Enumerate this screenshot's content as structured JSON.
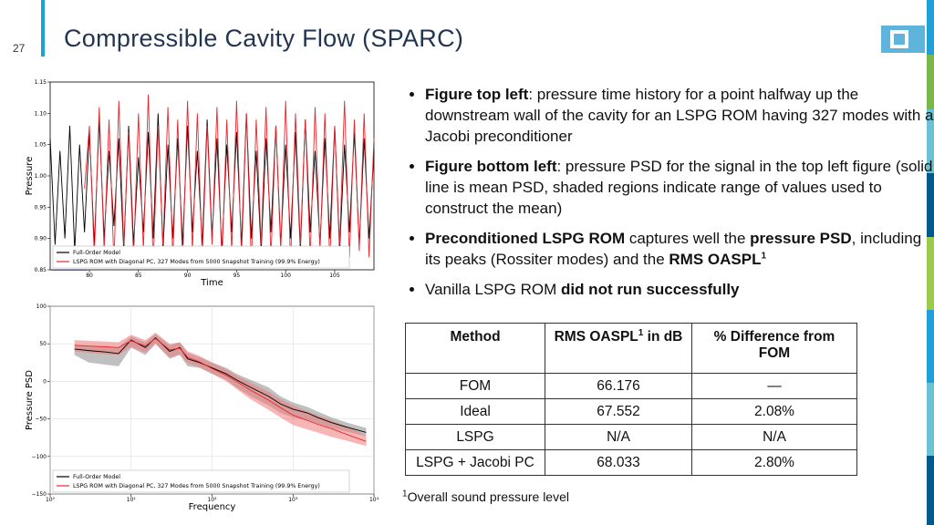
{
  "header": {
    "slide_number": "27",
    "title": "Compressible Cavity Flow (SPARC)"
  },
  "bullets": [
    [
      {
        "text": "Figure top left",
        "bold": true
      },
      {
        "text": ": pressure time history for a point halfway up the downstream wall of the cavity for an LSPG ROM having 327 modes with a Jacobi preconditioner"
      }
    ],
    [
      {
        "text": "Figure bottom left",
        "bold": true
      },
      {
        "text": ": pressure PSD for the signal in the top left figure (solid line is mean PSD, shaded regions indicate range of values used to construct the mean)"
      }
    ],
    [
      {
        "text": "Preconditioned LSPG ROM",
        "bold": true
      },
      {
        "text": " captures well the "
      },
      {
        "text": "pressure PSD",
        "bold": true
      },
      {
        "text": ", including its peaks (Rossiter modes) and the "
      },
      {
        "text": "RMS OASPL",
        "bold": true
      },
      {
        "text": "1",
        "bold": true,
        "sup": true
      }
    ],
    [
      {
        "text": "Vanilla LSPG ROM "
      },
      {
        "text": "did not run successfully",
        "bold": true
      }
    ]
  ],
  "table": {
    "header": [
      [
        {
          "text": "Method"
        }
      ],
      [
        {
          "text": "RMS OASPL"
        },
        {
          "text": "1",
          "sup": true
        },
        {
          "text": " in dB"
        }
      ],
      [
        {
          "text": "% Difference from FOM"
        }
      ]
    ],
    "rows": [
      [
        "FOM",
        "66.176",
        "—"
      ],
      [
        "Ideal",
        "67.552",
        "2.08%"
      ],
      [
        "LSPG",
        "N/A",
        "N/A"
      ],
      [
        "LSPG + Jacobi PC",
        "68.033",
        "2.80%"
      ]
    ]
  },
  "footnote": [
    {
      "text": "1",
      "sup": true
    },
    {
      "text": "Overall sound pressure level"
    }
  ],
  "chart_data": [
    {
      "type": "line",
      "xlabel": "Time",
      "ylabel": "Pressure",
      "xlim": [
        76,
        109
      ],
      "ylim": [
        0.85,
        1.15
      ],
      "xticks": [
        80,
        85,
        90,
        95,
        100,
        105
      ],
      "yticks": [
        0.85,
        {
          "value": 0.9,
          "label": "0.90"
        },
        0.95,
        {
          "value": 1,
          "label": "1.00"
        },
        1.05,
        {
          "value": 1.1,
          "label": "1.10"
        },
        1.15
      ],
      "grid": false,
      "legend": "lower left",
      "x": [
        76,
        76.5,
        77,
        77.5,
        78,
        78.5,
        79,
        79.5,
        80,
        80.5,
        81,
        81.5,
        82,
        82.5,
        83,
        83.5,
        84,
        84.5,
        85,
        85.5,
        86,
        86.5,
        87,
        87.5,
        88,
        88.5,
        89,
        89.5,
        90,
        90.5,
        91,
        91.5,
        92,
        92.5,
        93,
        93.5,
        94,
        94.5,
        95,
        95.5,
        96,
        96.5,
        97,
        97.5,
        98,
        98.5,
        99,
        99.5,
        100,
        100.5,
        101,
        101.5,
        102,
        102.5,
        103,
        103.5,
        104,
        104.5,
        105,
        105.5,
        106,
        106.5,
        107,
        107.5,
        108,
        108.5,
        109
      ],
      "series": [
        {
          "name": "Full-Order Model",
          "color": "#000000",
          "values": [
            1.06,
            0.89,
            1.04,
            0.9,
            1.08,
            0.88,
            1.05,
            0.91,
            1.07,
            0.89,
            1.09,
            0.9,
            1.04,
            0.92,
            1.06,
            0.88,
            1.08,
            0.89,
            1.03,
            0.91,
            1.07,
            0.9,
            1.1,
            0.88,
            1.05,
            0.9,
            1.06,
            0.89,
            1.08,
            0.91,
            1.04,
            0.89,
            1.09,
            0.9,
            1.06,
            0.88,
            1.05,
            0.91,
            1.07,
            0.89,
            1.1,
            0.9,
            1.04,
            0.88,
            1.06,
            0.91,
            1.08,
            0.89,
            1.05,
            0.9,
            1.07,
            0.88,
            1.09,
            0.91,
            1.04,
            0.89,
            1.06,
            0.9,
            1.08,
            0.88,
            1.05,
            0.91,
            1.07,
            0.89,
            1.06,
            0.9,
            1.04
          ]
        },
        {
          "name": "LSPG ROM with Diagonal PC, 327 Modes from 5000 Snapshot Training (99.9% Energy)",
          "color": "#e8262e",
          "values": [
            null,
            null,
            null,
            null,
            null,
            null,
            null,
            0.98,
            1.08,
            0.87,
            1.11,
            0.88,
            1.09,
            0.86,
            1.12,
            0.89,
            1.07,
            0.87,
            1.1,
            0.88,
            1.13,
            0.86,
            1.08,
            0.89,
            1.11,
            0.87,
            1.09,
            0.86,
            1.12,
            0.88,
            1.1,
            0.87,
            1.08,
            0.89,
            1.11,
            0.86,
            1.09,
            0.88,
            1.12,
            0.87,
            1.1,
            0.86,
            1.09,
            0.89,
            1.11,
            0.87,
            1.08,
            0.88,
            1.12,
            0.86,
            1.1,
            0.89,
            1.09,
            0.87,
            1.11,
            0.88,
            1.1,
            0.86,
            1.08,
            0.89,
            1.12,
            0.87,
            1.09,
            0.88,
            1.1,
            0.87,
            1.06
          ]
        }
      ]
    },
    {
      "type": "line",
      "xlabel": "Frequency",
      "ylabel": "Pressure PSD",
      "xlog": true,
      "xlim": [
        1,
        10000
      ],
      "ylim": [
        -150,
        100
      ],
      "xticks": [
        {
          "value": 1,
          "label": "10⁰"
        },
        {
          "value": 10,
          "label": "10¹"
        },
        {
          "value": 100,
          "label": "10²"
        },
        {
          "value": 1000,
          "label": "10³"
        },
        {
          "value": 10000,
          "label": "10⁴"
        }
      ],
      "yticks": [
        {
          "value": -150,
          "label": "−150"
        },
        {
          "value": -100,
          "label": "−100"
        },
        {
          "value": -50,
          "label": "−50"
        },
        0,
        50,
        100
      ],
      "grid": true,
      "legend": "lower left",
      "x": [
        2,
        3,
        5,
        7,
        10,
        15,
        20,
        30,
        40,
        50,
        70,
        100,
        150,
        200,
        300,
        500,
        700,
        1000,
        1500,
        2000,
        3000,
        5000,
        8000
      ],
      "series": [
        {
          "name": "Full-Order Model",
          "color": "#000000",
          "band_color": "#8c8c8c",
          "values": [
            43,
            41,
            39,
            37,
            55,
            45,
            58,
            40,
            45,
            30,
            25,
            18,
            10,
            2,
            -8,
            -20,
            -30,
            -37,
            -42,
            -48,
            -55,
            -62,
            -68
          ],
          "lower": [
            35,
            25,
            22,
            20,
            45,
            35,
            50,
            30,
            35,
            20,
            18,
            10,
            2,
            -8,
            -20,
            -32,
            -42,
            -48,
            -52,
            -56,
            -62,
            -68,
            -73
          ],
          "upper": [
            48,
            47,
            46,
            45,
            60,
            52,
            63,
            48,
            52,
            38,
            32,
            25,
            18,
            10,
            2,
            -8,
            -20,
            -28,
            -34,
            -40,
            -48,
            -56,
            -62
          ]
        },
        {
          "name": "LSPG ROM with Diagonal PC, 327 Modes from 5000 Snapshot Training (99.9% Energy)",
          "color": "#e8262e",
          "band_color": "#f07a7a",
          "values": [
            48,
            47,
            46,
            45,
            54,
            47,
            57,
            42,
            44,
            32,
            26,
            17,
            8,
            0,
            -12,
            -25,
            -35,
            -45,
            -52,
            -57,
            -63,
            -72,
            -80
          ],
          "lower": [
            40,
            38,
            36,
            35,
            46,
            38,
            50,
            32,
            36,
            24,
            19,
            10,
            0,
            -10,
            -24,
            -38,
            -48,
            -58,
            -64,
            -68,
            -74,
            -80,
            -86
          ],
          "upper": [
            55,
            54,
            53,
            52,
            62,
            55,
            65,
            50,
            52,
            40,
            34,
            25,
            16,
            8,
            -2,
            -14,
            -24,
            -32,
            -40,
            -45,
            -52,
            -62,
            -72
          ]
        }
      ]
    }
  ]
}
